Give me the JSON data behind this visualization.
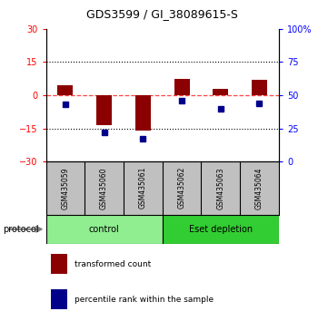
{
  "title": "GDS3599 / GI_38089615-S",
  "samples": [
    "GSM435059",
    "GSM435060",
    "GSM435061",
    "GSM435062",
    "GSM435063",
    "GSM435064"
  ],
  "red_values": [
    4.5,
    -13.5,
    -16.0,
    7.5,
    3.0,
    7.0
  ],
  "blue_values": [
    43,
    22,
    17,
    46,
    40,
    44
  ],
  "ylim_red": [
    -30,
    30
  ],
  "ylim_blue": [
    0,
    100
  ],
  "yticks_red": [
    -30,
    -15,
    0,
    15,
    30
  ],
  "yticks_blue": [
    0,
    25,
    50,
    75,
    100
  ],
  "groups": [
    {
      "label": "control",
      "color": "#90EE90"
    },
    {
      "label": "Eset depletion",
      "color": "#32CD32"
    }
  ],
  "red_color": "#8B0000",
  "blue_color": "#00008B",
  "dashed_red_color": "#FF4444",
  "background_color": "#FFFFFF",
  "plot_bg": "#FFFFFF",
  "sample_box_color": "#C0C0C0",
  "protocol_label": "protocol",
  "legend_red_label": "transformed count",
  "legend_blue_label": "percentile rank within the sample",
  "bar_width": 0.4
}
